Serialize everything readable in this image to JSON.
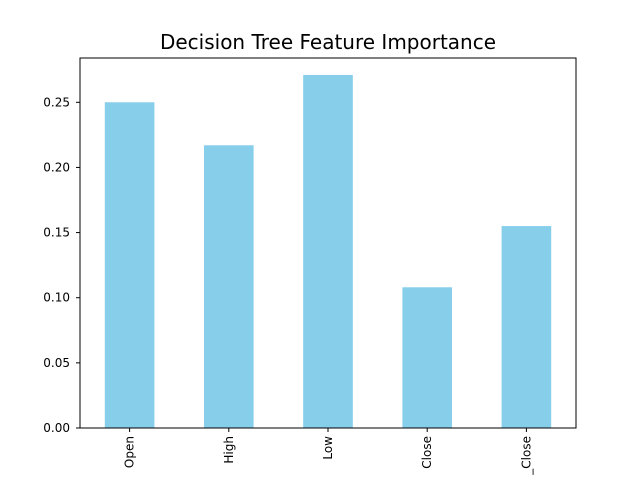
{
  "chart_data": {
    "type": "bar",
    "title": "Decision Tree Feature Importance",
    "xlabel": "",
    "ylabel": "",
    "categories": [
      "Open",
      "High",
      "Low",
      "Close",
      "_Close"
    ],
    "values": [
      0.25,
      0.217,
      0.271,
      0.108,
      0.155
    ],
    "ylim": [
      0,
      0.284
    ],
    "yticks": [
      "0.00",
      "0.05",
      "0.10",
      "0.15",
      "0.20",
      "0.25"
    ],
    "ytick_values": [
      0,
      0.05,
      0.1,
      0.15,
      0.2,
      0.25
    ],
    "bar_color": "#87CEEB",
    "grid": false,
    "legend": "none"
  }
}
